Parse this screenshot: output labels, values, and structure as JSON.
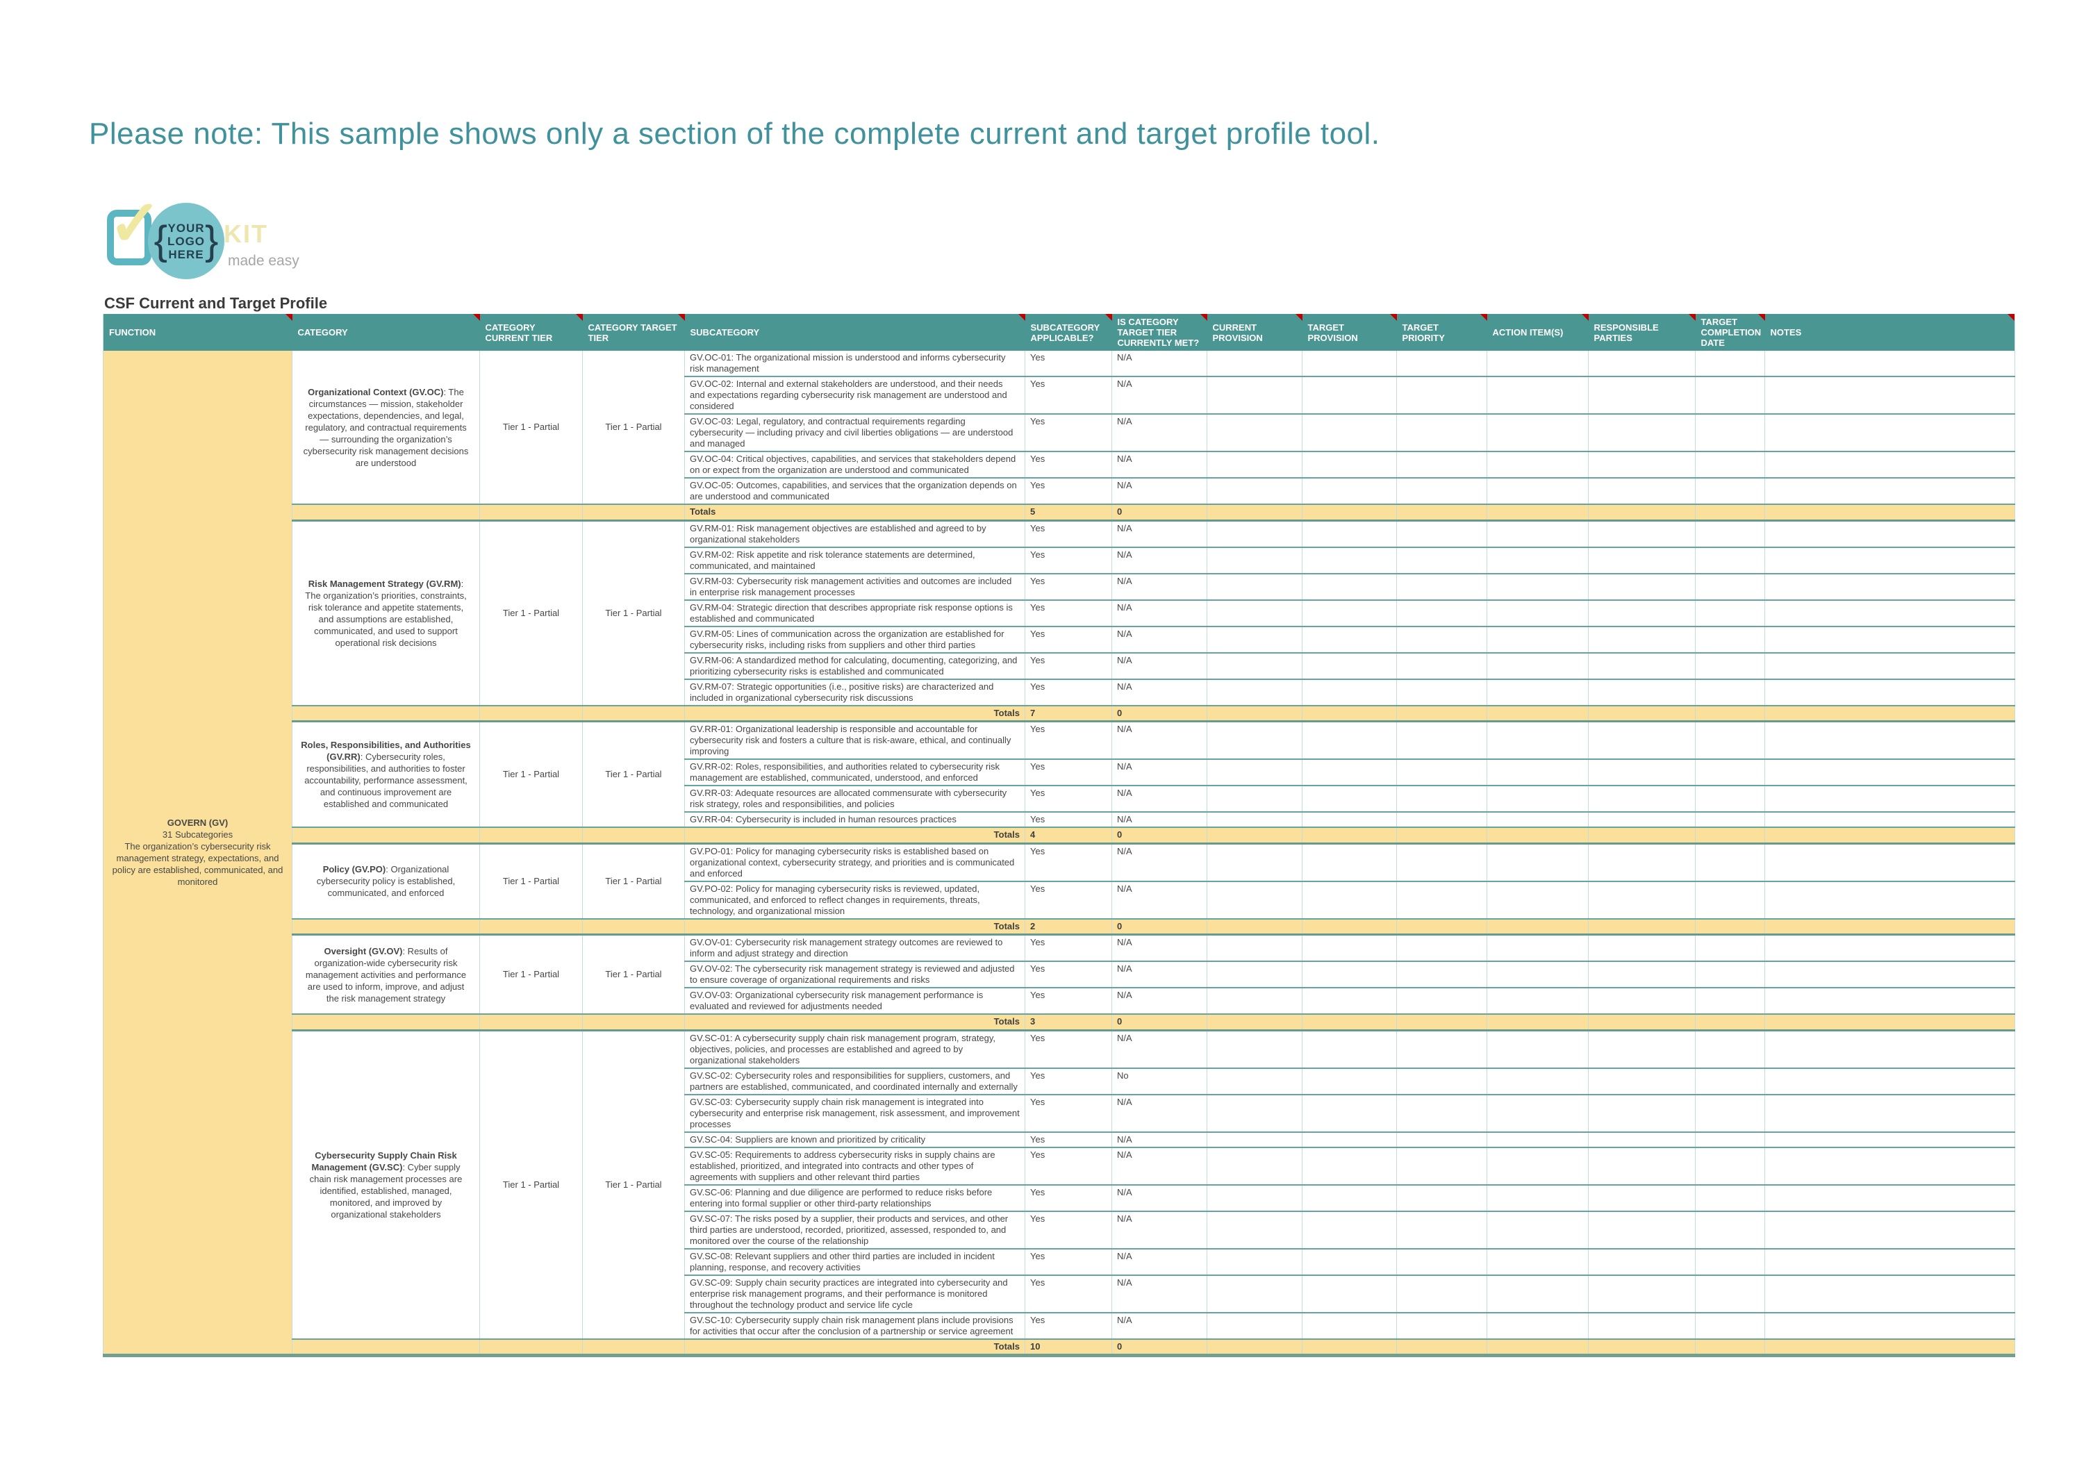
{
  "note": "Please note: This sample shows only a section of the complete current and target profile tool.",
  "logo": {
    "brand_visible": "KIT",
    "tagline_visible": "made easy",
    "overlay_brace_open": "{",
    "overlay_brace_close": "}",
    "overlay_lines": [
      "YOUR",
      "LOGO",
      "HERE"
    ],
    "check_glyph": "✓"
  },
  "doc_title": "CSF Current and Target Profile",
  "colors": {
    "teal": "#4A9693",
    "yellow": "#FAE09A",
    "note": "#3F929C",
    "marker": "#C00000",
    "divider": "#C6DCDA",
    "rowline": "#66A4A0",
    "circle": "#7CC4CB",
    "brand": "#EDE6AE",
    "tagline": "#A6A6A6",
    "logo_text": "#24404E",
    "check": "#EFE8A0",
    "icon": "#5BB6C2"
  },
  "table": {
    "columns": [
      "Function",
      "Category",
      "Category Current Tier",
      "Category Target Tier",
      "Subcategory",
      "Subcategory Applicable?",
      "Is Category Target Tier Currently Met?",
      "Current Provision",
      "Target Provision",
      "Target Priority",
      "Action Item(s)",
      "Responsible Parties",
      "Target Completion Date",
      "Notes"
    ],
    "function": {
      "name": "GOVERN (GV)",
      "subcount": "31 Subcategories",
      "description": "The organization’s cybersecurity risk management strategy, expectations, and policy are established, communicated, and monitored"
    },
    "categories": [
      {
        "title": "Organizational Context (GV.OC)",
        "desc": ": The circumstances — mission, stakeholder expectations, dependencies, and legal, regulatory, and contractual requirements — surrounding the organization’s cybersecurity risk management decisions are understood",
        "current_tier": "Tier 1 - Partial",
        "target_tier": "Tier 1 - Partial",
        "subcategories": [
          {
            "text": "GV.OC-01: The organizational mission is understood and informs cybersecurity risk management",
            "applicable": "Yes",
            "met": "N/A"
          },
          {
            "text": "GV.OC-02: Internal and external stakeholders are understood, and their needs and expectations regarding cybersecurity risk management are understood and considered",
            "applicable": "Yes",
            "met": "N/A"
          },
          {
            "text": "GV.OC-03: Legal, regulatory, and contractual requirements regarding cybersecurity — including privacy and civil liberties obligations — are understood and managed",
            "applicable": "Yes",
            "met": "N/A"
          },
          {
            "text": "GV.OC-04: Critical objectives, capabilities, and services that stakeholders depend on or expect from the organization are understood and communicated",
            "applicable": "Yes",
            "met": "N/A"
          },
          {
            "text": "GV.OC-05: Outcomes, capabilities, and services that the organization depends on are understood and communicated",
            "applicable": "Yes",
            "met": "N/A"
          }
        ],
        "totals": {
          "label": "Totals",
          "align": "left",
          "applicable": "5",
          "met": "0"
        }
      },
      {
        "title": "Risk Management Strategy (GV.RM)",
        "desc": ": The organization’s priorities, constraints, risk tolerance and appetite statements, and assumptions are established, communicated, and used to support operational risk decisions",
        "current_tier": "Tier 1 - Partial",
        "target_tier": "Tier 1 - Partial",
        "subcategories": [
          {
            "text": "GV.RM-01: Risk management objectives are established and agreed to by organizational stakeholders",
            "applicable": "Yes",
            "met": "N/A"
          },
          {
            "text": "GV.RM-02: Risk appetite and risk tolerance statements are determined, communicated, and maintained",
            "applicable": "Yes",
            "met": "N/A"
          },
          {
            "text": "GV.RM-03: Cybersecurity risk management activities and outcomes are included in enterprise risk management processes",
            "applicable": "Yes",
            "met": "N/A"
          },
          {
            "text": "GV.RM-04: Strategic direction that describes appropriate risk response options is established and communicated",
            "applicable": "Yes",
            "met": "N/A"
          },
          {
            "text": "GV.RM-05: Lines of communication across the organization are established for cybersecurity risks, including risks from suppliers and other third parties",
            "applicable": "Yes",
            "met": "N/A"
          },
          {
            "text": "GV.RM-06: A standardized method for calculating, documenting, categorizing, and prioritizing cybersecurity risks is established and communicated",
            "applicable": "Yes",
            "met": "N/A"
          },
          {
            "text": "GV.RM-07: Strategic opportunities (i.e., positive risks) are characterized and included in organizational cybersecurity risk discussions",
            "applicable": "Yes",
            "met": "N/A"
          }
        ],
        "totals": {
          "label": "Totals",
          "align": "right",
          "applicable": "7",
          "met": "0"
        }
      },
      {
        "title": "Roles, Responsibilities, and Authorities (GV.RR)",
        "desc": ": Cybersecurity roles, responsibilities, and authorities to foster accountability, performance assessment, and continuous improvement are established and communicated",
        "current_tier": "Tier 1 - Partial",
        "target_tier": "Tier 1 - Partial",
        "subcategories": [
          {
            "text": "GV.RR-01: Organizational leadership is responsible and accountable for cybersecurity risk and fosters a culture that is risk-aware, ethical, and continually improving",
            "applicable": "Yes",
            "met": "N/A"
          },
          {
            "text": "GV.RR-02: Roles, responsibilities, and authorities related to cybersecurity risk management are established, communicated, understood, and enforced",
            "applicable": "Yes",
            "met": "N/A"
          },
          {
            "text": "GV.RR-03: Adequate resources are allocated commensurate with cybersecurity risk strategy, roles and responsibilities, and policies",
            "applicable": "Yes",
            "met": "N/A"
          },
          {
            "text": "GV.RR-04: Cybersecurity is included in human resources practices",
            "applicable": "Yes",
            "met": "N/A"
          }
        ],
        "totals": {
          "label": "Totals",
          "align": "right",
          "applicable": "4",
          "met": "0"
        }
      },
      {
        "title": "Policy (GV.PO)",
        "desc": ": Organizational cybersecurity policy is established, communicated, and enforced",
        "current_tier": "Tier 1 - Partial",
        "target_tier": "Tier 1 - Partial",
        "subcategories": [
          {
            "text": "GV.PO-01: Policy for managing cybersecurity risks is established based on organizational context, cybersecurity strategy, and priorities and is communicated and enforced",
            "applicable": "Yes",
            "met": "N/A"
          },
          {
            "text": "GV.PO-02: Policy for managing cybersecurity risks is reviewed, updated, communicated, and enforced to reflect changes in requirements, threats, technology, and organizational mission",
            "applicable": "Yes",
            "met": "N/A"
          }
        ],
        "totals": {
          "label": "Totals",
          "align": "right",
          "applicable": "2",
          "met": "0"
        }
      },
      {
        "title": "Oversight (GV.OV)",
        "desc": ": Results of organization-wide cybersecurity risk management activities and performance are used to inform, improve, and adjust the risk management strategy",
        "current_tier": "Tier 1 - Partial",
        "target_tier": "Tier 1 - Partial",
        "subcategories": [
          {
            "text": "GV.OV-01: Cybersecurity risk management strategy outcomes are reviewed to inform and adjust strategy and direction",
            "applicable": "Yes",
            "met": "N/A"
          },
          {
            "text": "GV.OV-02: The cybersecurity risk management strategy is reviewed and adjusted to ensure coverage of organizational requirements and risks",
            "applicable": "Yes",
            "met": "N/A"
          },
          {
            "text": "GV.OV-03: Organizational cybersecurity risk management performance is evaluated and reviewed for adjustments needed",
            "applicable": "Yes",
            "met": "N/A"
          }
        ],
        "totals": {
          "label": "Totals",
          "align": "right",
          "applicable": "3",
          "met": "0"
        }
      },
      {
        "title": "Cybersecurity Supply Chain Risk Management (GV.SC)",
        "desc": ": Cyber supply chain risk management processes are identified, established, managed, monitored, and improved by organizational stakeholders",
        "current_tier": "Tier 1 - Partial",
        "target_tier": "Tier 1 - Partial",
        "subcategories": [
          {
            "text": "GV.SC-01: A cybersecurity supply chain risk management program, strategy, objectives, policies, and processes are established and agreed to by organizational stakeholders",
            "applicable": "Yes",
            "met": "N/A"
          },
          {
            "text": "GV.SC-02: Cybersecurity roles and responsibilities for suppliers, customers, and partners are established, communicated, and coordinated internally and externally",
            "applicable": "Yes",
            "met": "No"
          },
          {
            "text": "GV.SC-03: Cybersecurity supply chain risk management is integrated into cybersecurity and enterprise risk management, risk assessment, and improvement processes",
            "applicable": "Yes",
            "met": "N/A"
          },
          {
            "text": "GV.SC-04: Suppliers are known and prioritized by criticality",
            "applicable": "Yes",
            "met": "N/A"
          },
          {
            "text": "GV.SC-05: Requirements to address cybersecurity risks in supply chains are established, prioritized, and integrated into contracts and other types of agreements with suppliers and other relevant third parties",
            "applicable": "Yes",
            "met": "N/A"
          },
          {
            "text": "GV.SC-06: Planning and due diligence are performed to reduce risks before entering into formal supplier or other third-party relationships",
            "applicable": "Yes",
            "met": "N/A"
          },
          {
            "text": "GV.SC-07: The risks posed by a supplier, their products and services, and other third parties are understood, recorded, prioritized, assessed, responded to, and monitored over the course of the relationship",
            "applicable": "Yes",
            "met": "N/A"
          },
          {
            "text": "GV.SC-08: Relevant suppliers and other third parties are included in incident planning, response, and recovery activities",
            "applicable": "Yes",
            "met": "N/A"
          },
          {
            "text": "GV.SC-09: Supply chain security practices are integrated into cybersecurity and enterprise risk management programs, and their performance is monitored throughout the technology product and service life cycle",
            "applicable": "Yes",
            "met": "N/A"
          },
          {
            "text": "GV.SC-10: Cybersecurity supply chain risk management plans include provisions for activities that occur after the conclusion of a partnership or service agreement",
            "applicable": "Yes",
            "met": "N/A"
          }
        ],
        "totals": {
          "label": "Totals",
          "align": "right",
          "applicable": "10",
          "met": "0"
        }
      }
    ]
  }
}
